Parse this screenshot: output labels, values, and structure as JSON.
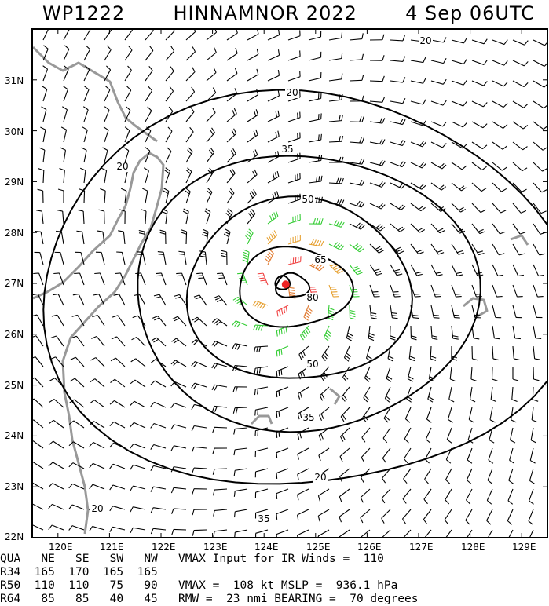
{
  "header": {
    "storm_id": "WP1222",
    "storm_name_year": "HINNAMNOR 2022",
    "datetime": "4 Sep 06UTC"
  },
  "map": {
    "lat_labels": [
      "31N",
      "30N",
      "29N",
      "28N",
      "27N",
      "26N",
      "25N",
      "24N",
      "23N",
      "22N"
    ],
    "lon_labels": [
      "120E",
      "121E",
      "122E",
      "123E",
      "124E",
      "125E",
      "126E",
      "127E",
      "128E",
      "129E"
    ],
    "lat_range": [
      22,
      32
    ],
    "lon_range": [
      119.5,
      129.5
    ],
    "storm_center": {
      "lon": 124.42,
      "lat": 26.98
    },
    "contour_labels": [
      "20",
      "20",
      "20",
      "20",
      "20",
      "35",
      "35",
      "35",
      "50",
      "50",
      "65",
      "80"
    ],
    "colors": {
      "below_34kt": "#000000",
      "34_to_50kt": "#33cc33",
      "50_to_64kt": "#e6a030",
      "64_to_80kt": "#e07a30",
      "above_80kt": "#f04545",
      "land": "#999999",
      "center": "#ee2222"
    }
  },
  "table": {
    "row1": "QUA   NE   SE   SW   NW   VMAX Input for IR Winds =  110",
    "row2": "R34  165  170  165  165",
    "row3": "R50  110  110   75   90   VMAX =  108 kt MSLP =  936.1 hPa",
    "row4": "R64   85   85   40   45   RMW =  23 nmi BEARING =  70 degrees"
  }
}
